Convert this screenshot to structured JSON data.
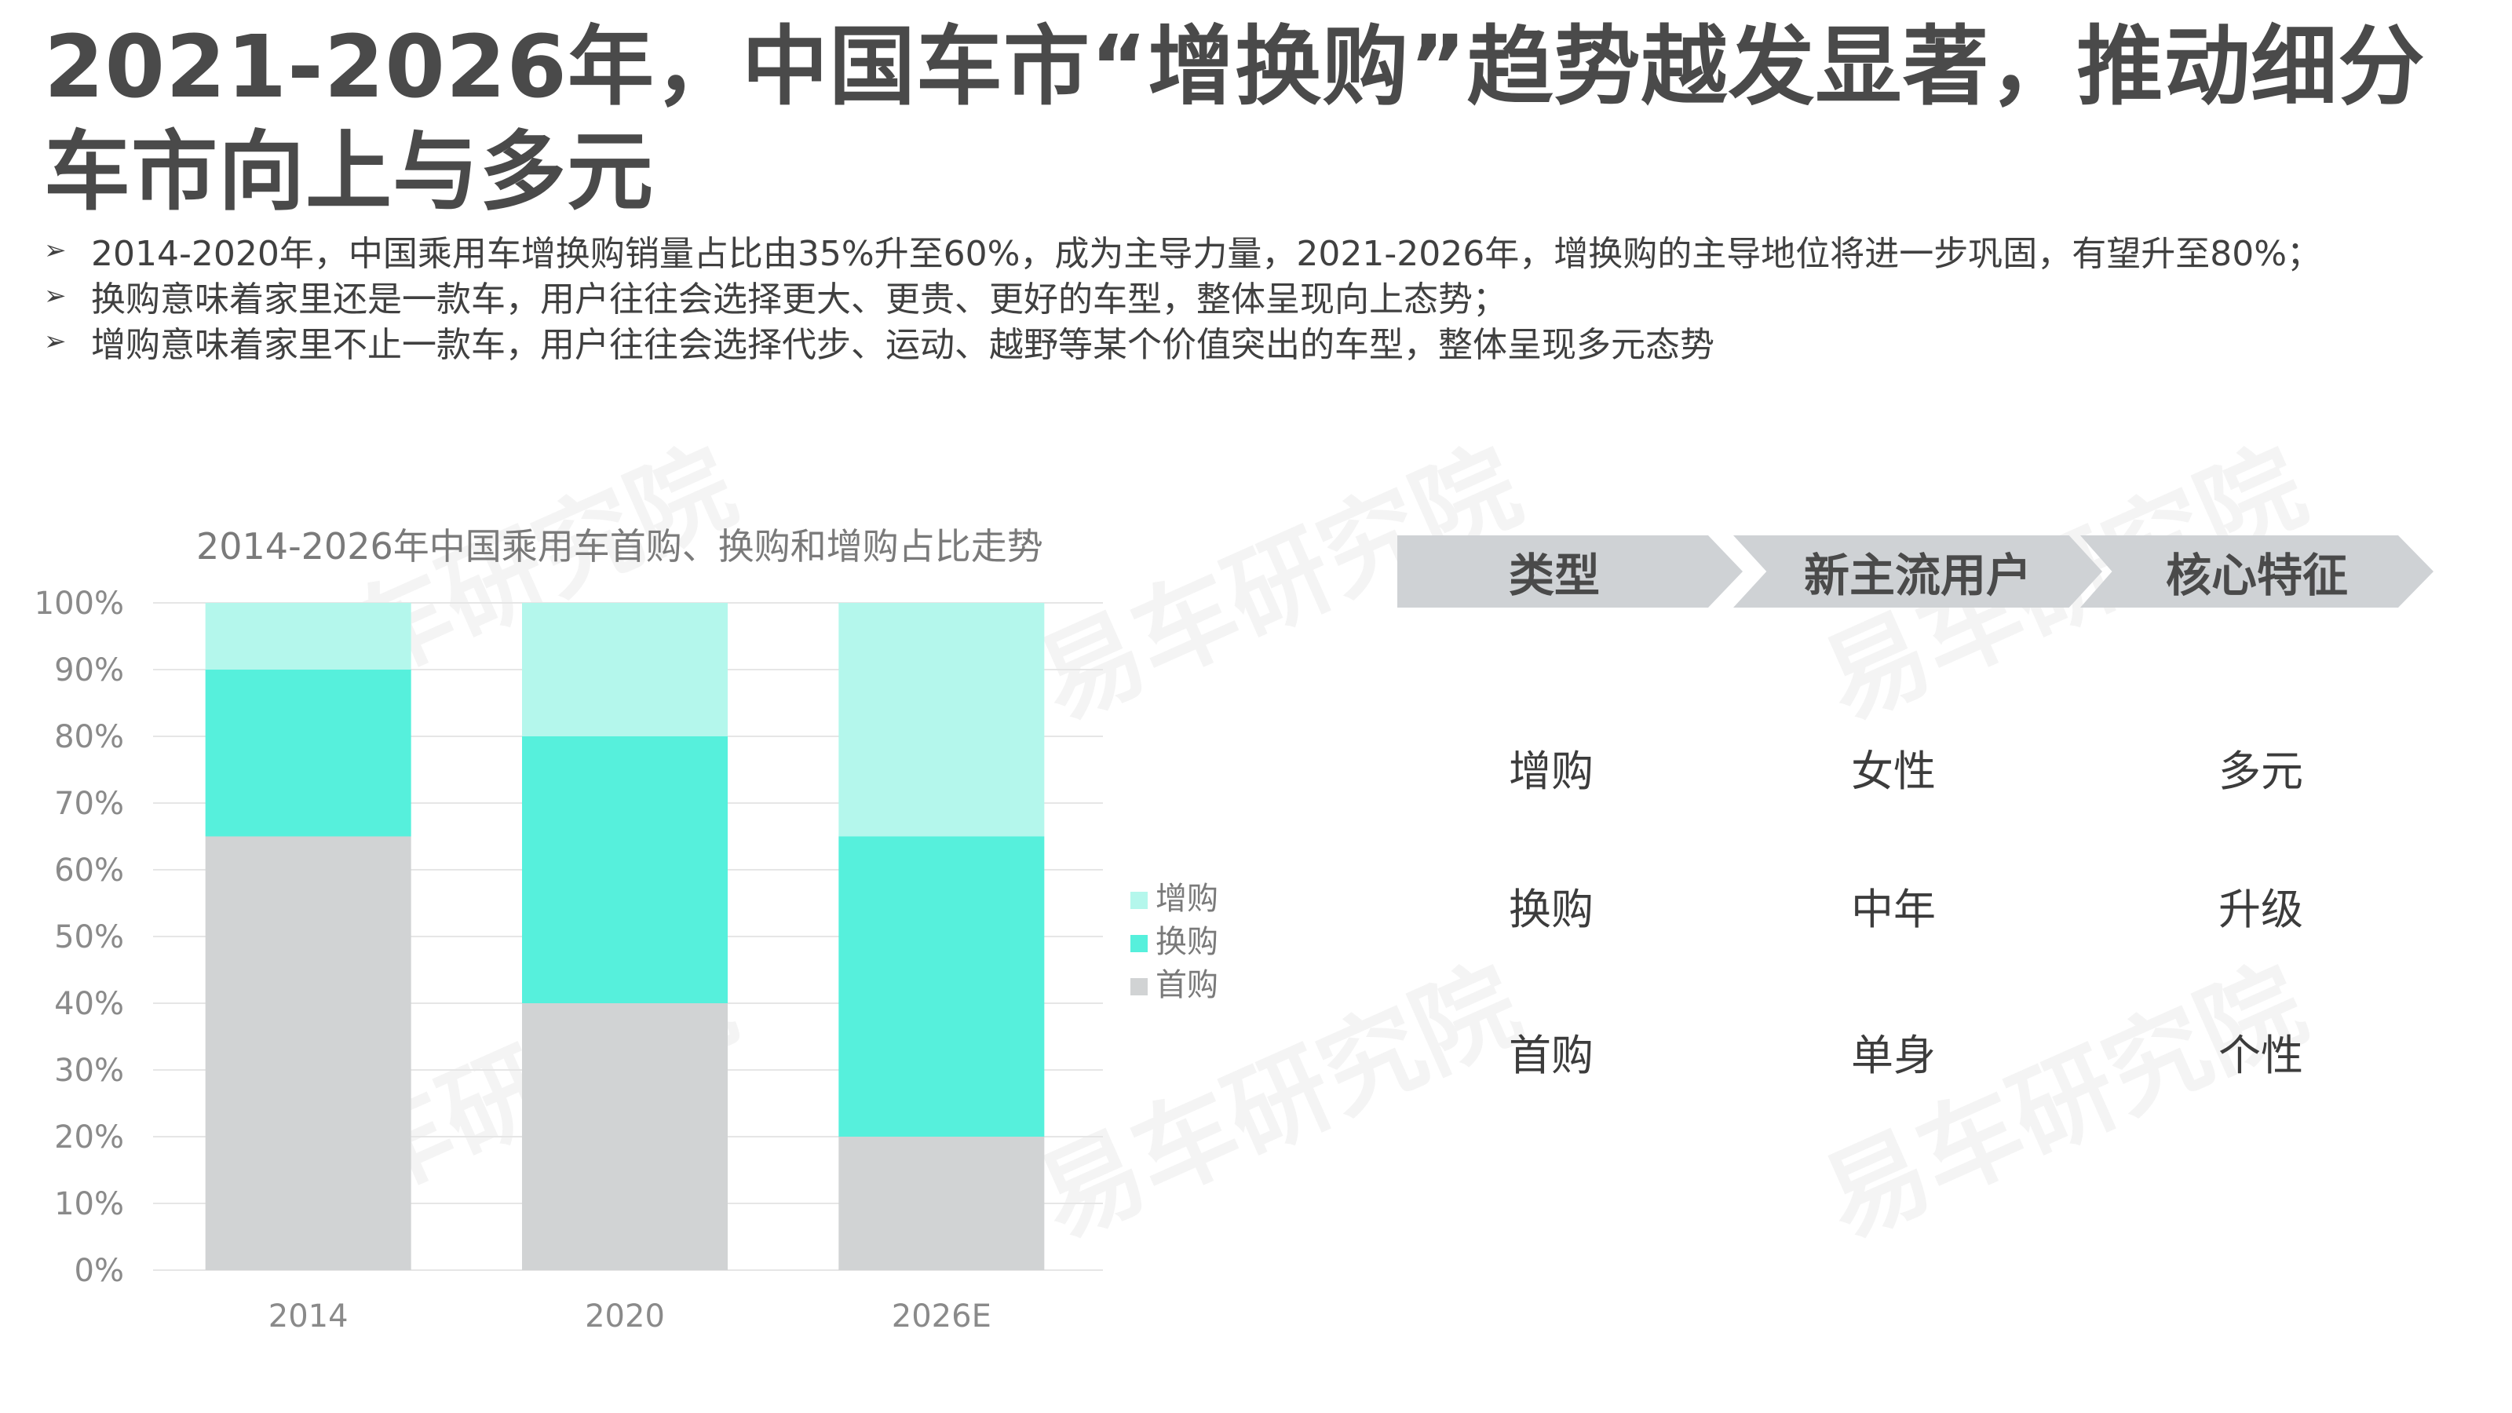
{
  "page": {
    "title": "2021-2026年，中国车市“增换购”趋势越发显著，推动细分车市向上与多元",
    "bullets": [
      "2014-2020年，中国乘用车增换购销量占比由35%升至60%，成为主导力量，2021-2026年，增换购的主导地位将进一步巩固，有望升至80%；",
      "换购意味着家里还是一款车，用户往往会选择更大、更贵、更好的车型，整体呈现向上态势；",
      "增购意味着家里不止一款车，用户往往会选择代步、运动、越野等某个价值突出的车型，整体呈现多元态势"
    ],
    "bullet_icon": "arrow-right-icon",
    "watermark": "易车研究院"
  },
  "chart_data": {
    "type": "bar",
    "stacked": true,
    "title": "2014-2026年中国乘用车首购、换购和增购占比走势",
    "categories": [
      "2014",
      "2020",
      "2026E"
    ],
    "series": [
      {
        "name": "首购",
        "values": [
          65,
          40,
          20
        ],
        "color": "#d1d3d4"
      },
      {
        "name": "换购",
        "values": [
          25,
          40,
          45
        ],
        "color": "#56f0dc"
      },
      {
        "name": "增购",
        "values": [
          10,
          20,
          35
        ],
        "color": "#b4f7ec"
      }
    ],
    "yticks": [
      "0%",
      "10%",
      "20%",
      "30%",
      "40%",
      "50%",
      "60%",
      "70%",
      "80%",
      "90%",
      "100%"
    ],
    "ylim": [
      0,
      100
    ],
    "grid": true,
    "legend": "right"
  },
  "table": {
    "headers": [
      "类型",
      "新主流用户",
      "核心特征"
    ],
    "rows": [
      [
        "增购",
        "女性",
        "多元"
      ],
      [
        "换购",
        "中年",
        "升级"
      ],
      [
        "首购",
        "单身",
        "个性"
      ]
    ],
    "header_color": "#cfd2d5"
  }
}
